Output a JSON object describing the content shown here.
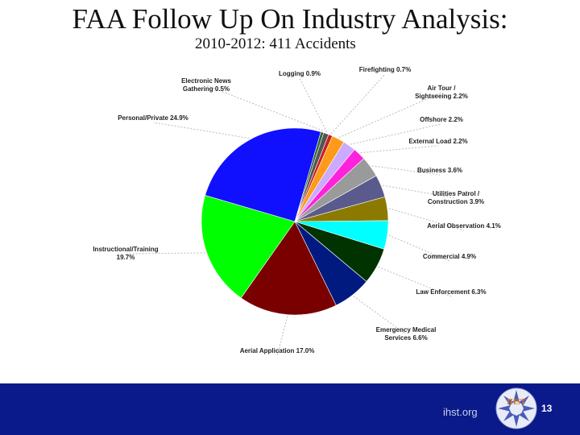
{
  "slide": {
    "title": "FAA Follow Up On Industry Analysis:",
    "subtitle": "2010-2012:  411 Accidents",
    "footer_site": "ihst.org",
    "logo_text": "IHST",
    "page_number": "13"
  },
  "chart_data": {
    "type": "pie",
    "total_accidents": 411,
    "slices": [
      {
        "label": "Logging 0.9%",
        "value": 0.9,
        "color": "#555555"
      },
      {
        "label": "Firefighting 0.7%",
        "value": 0.7,
        "color": "#c82020"
      },
      {
        "label": "Air Tour / Sightseeing 2.2%",
        "value": 2.2,
        "color": "#ff9a1a"
      },
      {
        "label": "Offshore 2.2%",
        "value": 2.2,
        "color": "#ccaaff"
      },
      {
        "label": "External Load 2.2%",
        "value": 2.2,
        "color": "#ff22dd"
      },
      {
        "label": "Business 3.6%",
        "value": 3.6,
        "color": "#9a9a9a"
      },
      {
        "label": "Utilities Patrol / Construction 3.9%",
        "value": 3.9,
        "color": "#5a5a8c"
      },
      {
        "label": "Aerial Observation 4.1%",
        "value": 4.1,
        "color": "#8c7a00"
      },
      {
        "label": "Commercial 4.9%",
        "value": 4.9,
        "color": "#00ffff"
      },
      {
        "label": "Law Enforcement 6.3%",
        "value": 6.3,
        "color": "#003300"
      },
      {
        "label": "Emergency Medical Services 6.6%",
        "value": 6.6,
        "color": "#001a80"
      },
      {
        "label": "Aerial Application 17.0%",
        "value": 17.0,
        "color": "#7a0000"
      },
      {
        "label": "Instructional/Training 19.7%",
        "value": 19.7,
        "color": "#00ff00"
      },
      {
        "label": "Personal/Private 24.9%",
        "value": 24.9,
        "color": "#1010ff"
      },
      {
        "label": "Electronic News Gathering 0.5%",
        "value": 0.5,
        "color": "#336633"
      }
    ]
  }
}
